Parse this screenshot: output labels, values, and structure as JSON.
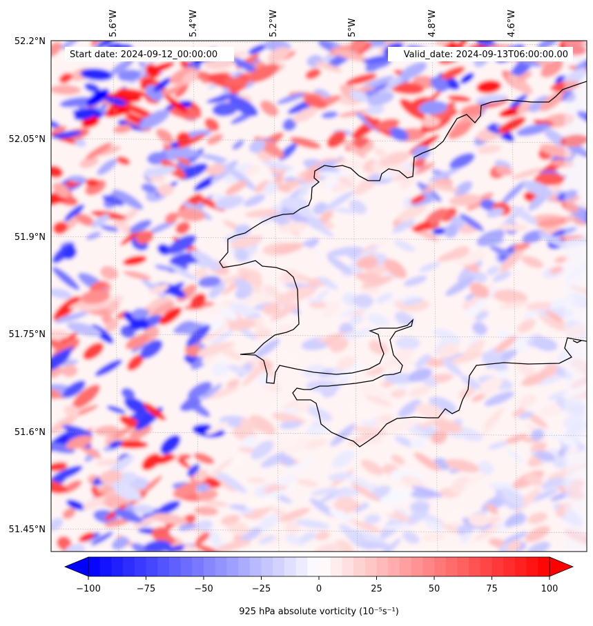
{
  "map": {
    "start_label": "Start date: 2024-09-12_00:00:00",
    "valid_label": "Valid_date: 2024-09-13T06:00:00.00",
    "variable": "925 hPa absolute vorticity",
    "units_label": "925 hPa absolute vorticity (10⁻⁵s⁻¹)",
    "lat_ticks": [
      "52.2°N",
      "52.05°N",
      "51.9°N",
      "51.75°N",
      "51.6°N",
      "51.45°N"
    ],
    "lon_ticks": [
      "5.6°W",
      "5.4°W",
      "5.2°W",
      "5°W",
      "4.8°W",
      "4.6°W"
    ],
    "lat_range": [
      51.42,
      52.2
    ],
    "lon_range": [
      -5.75,
      -4.42
    ]
  },
  "colorbar": {
    "min": -100,
    "max": 100,
    "levels": 41,
    "ticks": [
      "−100",
      "−75",
      "−50",
      "−25",
      "0",
      "25",
      "50",
      "75",
      "100"
    ],
    "colormap": "bwr",
    "negative_color": "#0000ff",
    "zero_color": "#ffffff",
    "positive_color": "#ff0000"
  },
  "colors": {
    "coastline": "#000000",
    "gridline": "#999999",
    "frame": "#000000"
  }
}
